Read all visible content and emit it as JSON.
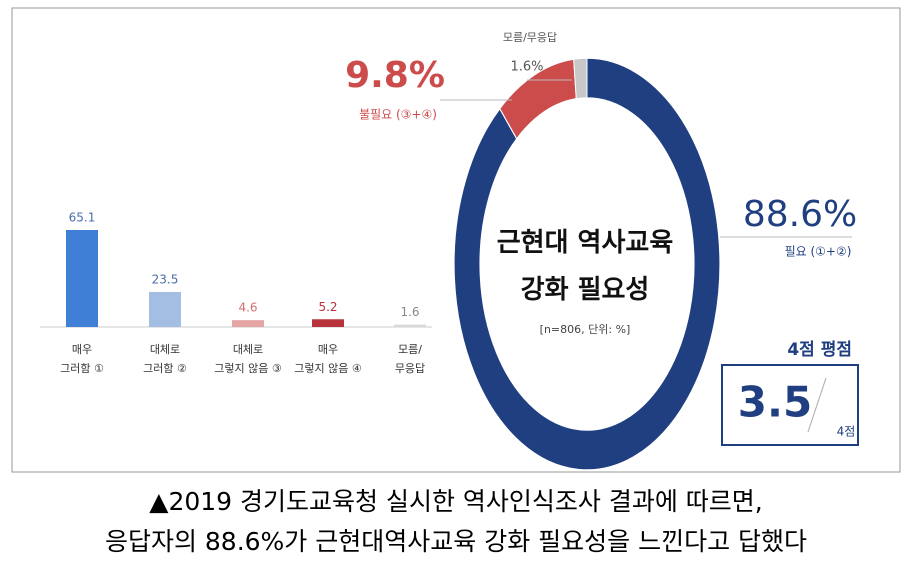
{
  "chart_data": [
    {
      "type": "bar",
      "categories": [
        "매우\n그러함 ①",
        "대체로\n그러함 ②",
        "대체로\n그렇지 않음 ③",
        "매우\n그렇지 않음 ④",
        "모름/\n무응답"
      ],
      "values": [
        65.1,
        23.5,
        4.6,
        5.2,
        1.6
      ],
      "colors": [
        "#3f7fd6",
        "#a3bde3",
        "#e6a5a5",
        "#b8343c",
        "#d9d9d9"
      ],
      "label_colors": [
        "#4a6ea8",
        "#4a6ea8",
        "#d07070",
        "#b8343c",
        "#888888"
      ]
    },
    {
      "type": "pie",
      "title": "근현대 역사교육\n강화 필요성",
      "subtitle": "[n=806, 단위: %]",
      "categories": [
        "필요 (①+②)",
        "불필요 (③+④)",
        "모름/무응답"
      ],
      "values": [
        88.6,
        9.8,
        1.6
      ],
      "value_labels": [
        "88.6%",
        "9.8%",
        "1.6%"
      ],
      "colors": [
        "#1f3f80",
        "#cc4b4b",
        "#c8c8c8"
      ]
    }
  ],
  "score": {
    "label": "4점 평점",
    "value": 3.5,
    "max_label": "4점"
  },
  "caption": [
    "▲2019 경기도교육청 실시한 역사인식조사 결과에 따르면,",
    "응답자의 88.6%가 근현대역사교육 강화 필요성을 느낀다고 답했다"
  ]
}
